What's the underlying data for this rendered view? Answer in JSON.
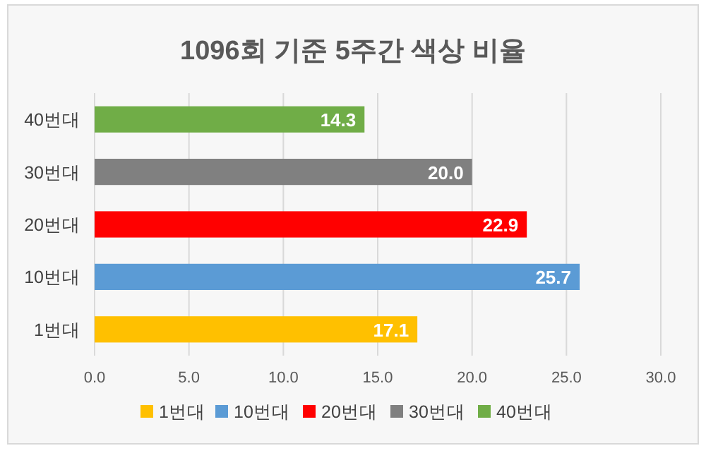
{
  "chart_data": {
    "type": "bar",
    "orientation": "horizontal",
    "title": "1096회 기준 5주간 색상 비율",
    "categories": [
      "40번대",
      "30번대",
      "20번대",
      "10번대",
      "1번대"
    ],
    "series": [
      {
        "name": "1번대",
        "color": "#ffc000",
        "values": [
          null,
          null,
          null,
          null,
          17.1
        ],
        "value_labels": [
          null,
          null,
          null,
          null,
          "17.1"
        ]
      },
      {
        "name": "10번대",
        "color": "#5b9bd5",
        "values": [
          null,
          null,
          null,
          25.7,
          null
        ],
        "value_labels": [
          null,
          null,
          null,
          "25.7",
          null
        ]
      },
      {
        "name": "20번대",
        "color": "#ff0000",
        "values": [
          null,
          null,
          22.9,
          null,
          null
        ],
        "value_labels": [
          null,
          null,
          "22.9",
          null,
          null
        ]
      },
      {
        "name": "30번대",
        "color": "#808080",
        "values": [
          null,
          20.0,
          null,
          null,
          null
        ],
        "value_labels": [
          null,
          "20.0",
          null,
          null,
          null
        ]
      },
      {
        "name": "40번대",
        "color": "#70ad47",
        "values": [
          14.3,
          null,
          null,
          null,
          null
        ],
        "value_labels": [
          "14.3",
          null,
          null,
          null,
          null
        ]
      }
    ],
    "xlim": [
      0,
      30
    ],
    "xticks": [
      {
        "value": 0,
        "label": "0.0"
      },
      {
        "value": 5,
        "label": "5.0"
      },
      {
        "value": 10,
        "label": "10.0"
      },
      {
        "value": 15,
        "label": "15.0"
      },
      {
        "value": 20,
        "label": "20.0"
      },
      {
        "value": 25,
        "label": "25.0"
      },
      {
        "value": 30,
        "label": "30.0"
      }
    ],
    "grid": "x",
    "legend": "bottom"
  }
}
